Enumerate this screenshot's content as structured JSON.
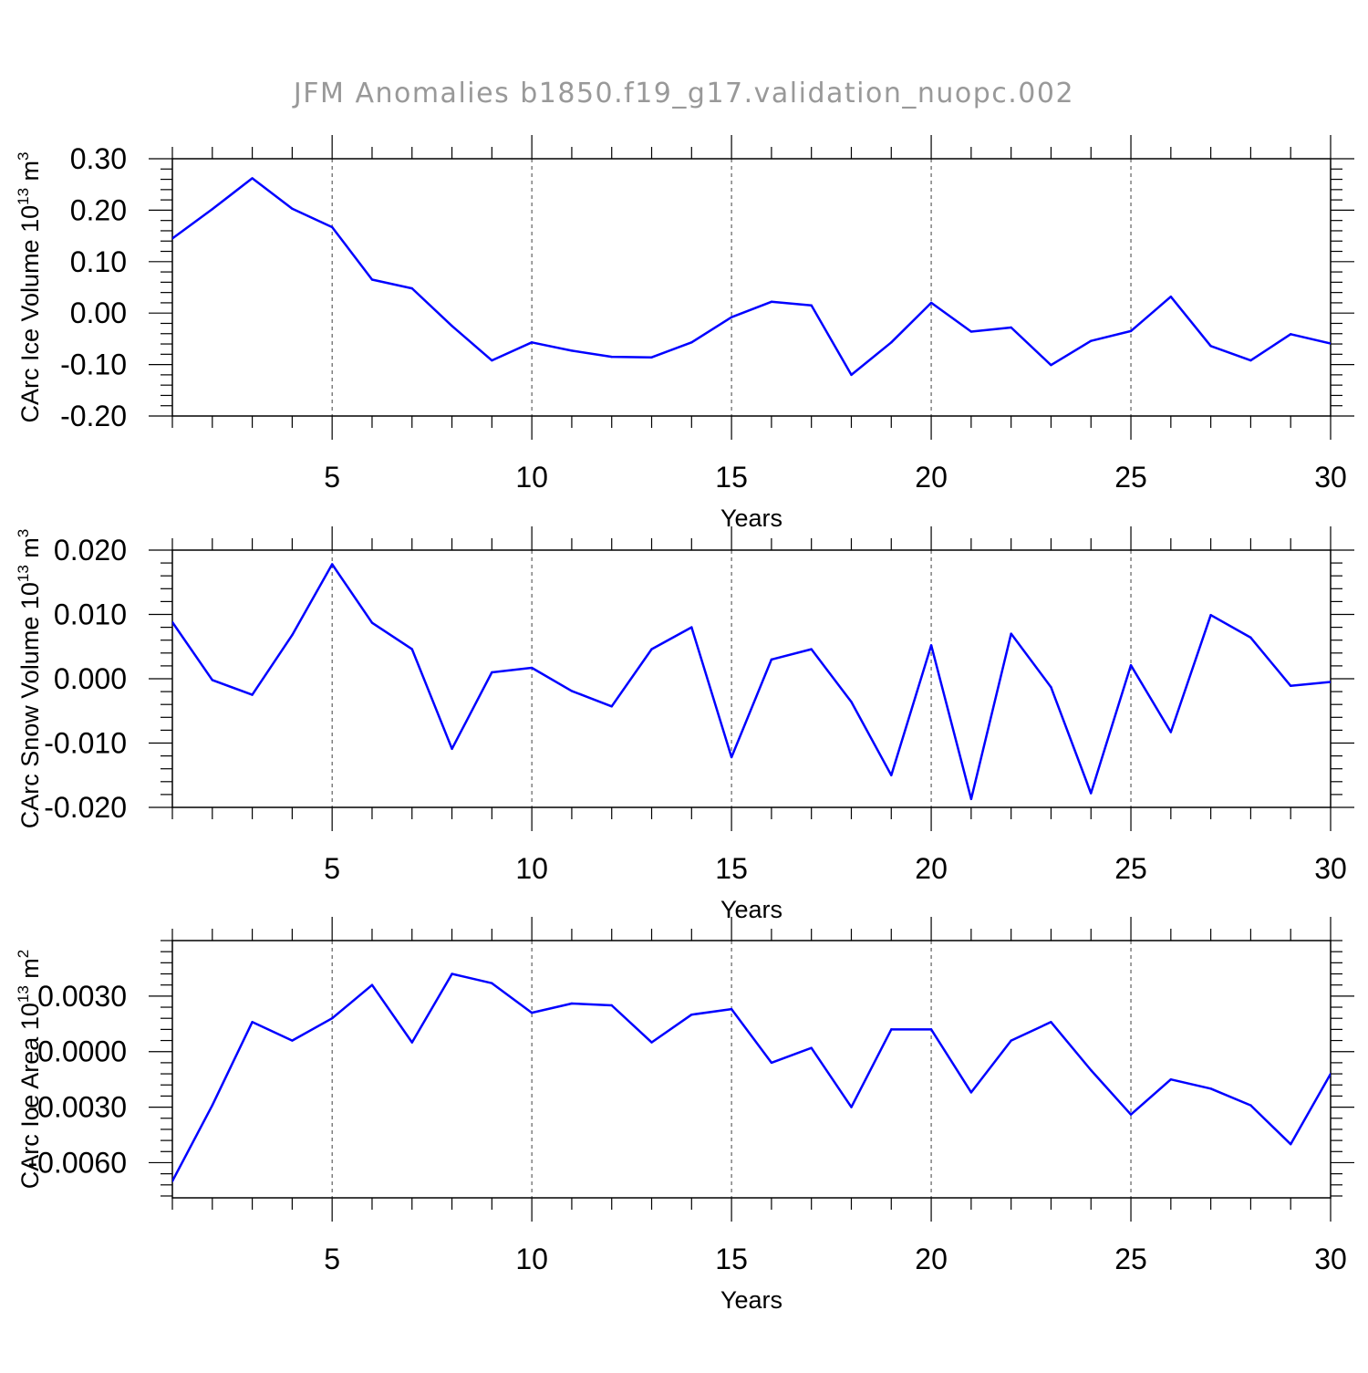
{
  "title": "JFM Anomalies b1850.f19_g17.validation_nuopc.002",
  "colors": {
    "line": "#0000ff",
    "axis": "#000000",
    "title": "#999999",
    "grid": "#000000"
  },
  "chart_data": [
    {
      "type": "line",
      "title": "",
      "xlabel": "Years",
      "ylabel_main": "CArc Ice Volume 10",
      "ylabel_sup": "13",
      "ylabel_unit": " m",
      "ylabel_unit_sup": "3",
      "xlim": [
        1,
        30
      ],
      "ylim": [
        -0.2,
        0.3
      ],
      "xticks": [
        "5",
        "10",
        "15",
        "20",
        "25",
        "30"
      ],
      "xtick_values": [
        5,
        10,
        15,
        20,
        25,
        30
      ],
      "yticks": [
        "0.30",
        "0.20",
        "0.10",
        "0.00",
        "-0.10",
        "-0.20"
      ],
      "ytick_values": [
        0.3,
        0.2,
        0.1,
        0.0,
        -0.1,
        -0.2
      ],
      "grid": "vertical dashed at major x ticks",
      "series": [
        {
          "x": [
            1,
            2,
            3,
            4,
            5,
            6,
            7,
            8,
            9,
            10,
            11,
            12,
            13,
            14,
            15,
            16,
            17,
            18,
            19,
            20,
            21,
            22,
            23,
            24,
            25,
            26,
            27,
            28,
            29,
            30
          ],
          "values": [
            0.145,
            0.202,
            0.262,
            0.203,
            0.167,
            0.065,
            0.048,
            -0.025,
            -0.092,
            -0.057,
            -0.073,
            -0.085,
            -0.086,
            -0.057,
            -0.008,
            0.022,
            0.015,
            -0.12,
            -0.057,
            0.02,
            -0.036,
            -0.028,
            -0.101,
            -0.054,
            -0.035,
            0.032,
            -0.064,
            -0.092,
            -0.041,
            -0.059
          ]
        }
      ]
    },
    {
      "type": "line",
      "title": "",
      "xlabel": "Years",
      "ylabel_main": "CArc Snow Volume 10",
      "ylabel_sup": "13",
      "ylabel_unit": " m",
      "ylabel_unit_sup": "3",
      "xlim": [
        1,
        30
      ],
      "ylim": [
        -0.02,
        0.02
      ],
      "xticks": [
        "5",
        "10",
        "15",
        "20",
        "25",
        "30"
      ],
      "xtick_values": [
        5,
        10,
        15,
        20,
        25,
        30
      ],
      "yticks": [
        "0.020",
        "0.010",
        "0.000",
        "-0.010",
        "-0.020"
      ],
      "ytick_values": [
        0.02,
        0.01,
        0.0,
        -0.01,
        -0.02
      ],
      "grid": "vertical dashed at major x ticks",
      "series": [
        {
          "x": [
            1,
            2,
            3,
            4,
            5,
            6,
            7,
            8,
            9,
            10,
            11,
            12,
            13,
            14,
            15,
            16,
            17,
            18,
            19,
            20,
            21,
            22,
            23,
            24,
            25,
            26,
            27,
            28,
            29,
            30
          ],
          "values": [
            0.0088,
            -0.0002,
            -0.0025,
            0.0068,
            0.0178,
            0.0087,
            0.0046,
            -0.0109,
            0.001,
            0.0017,
            -0.0019,
            -0.0043,
            0.0046,
            0.008,
            -0.0122,
            0.003,
            0.0046,
            -0.0036,
            -0.015,
            0.0052,
            -0.0187,
            0.007,
            -0.0013,
            -0.0178,
            0.0021,
            -0.0083,
            0.0099,
            0.0064,
            -0.0011,
            -0.0005
          ]
        }
      ]
    },
    {
      "type": "line",
      "title": "",
      "xlabel": "Years",
      "ylabel_main": "CArc Ice Area 10",
      "ylabel_sup": "13",
      "ylabel_unit": " m",
      "ylabel_unit_sup": "2",
      "xlim": [
        1,
        30
      ],
      "ylim": [
        -0.0079,
        0.006
      ],
      "xticks": [
        "5",
        "10",
        "15",
        "20",
        "25",
        "30"
      ],
      "xtick_values": [
        5,
        10,
        15,
        20,
        25,
        30
      ],
      "yticks": [
        "0.0030",
        "0.0000",
        "-0.0030",
        "-0.0060"
      ],
      "ytick_values": [
        0.003,
        0.0,
        -0.003,
        -0.006
      ],
      "grid": "vertical dashed at major x ticks",
      "series": [
        {
          "x": [
            1,
            2,
            3,
            4,
            5,
            6,
            7,
            8,
            9,
            10,
            11,
            12,
            13,
            14,
            15,
            16,
            17,
            18,
            19,
            20,
            21,
            22,
            23,
            24,
            25,
            26,
            27,
            28,
            29,
            30
          ],
          "values": [
            -0.007,
            -0.0029,
            0.0016,
            0.0006,
            0.0018,
            0.0036,
            0.0005,
            0.0042,
            0.0037,
            0.0021,
            0.0026,
            0.0025,
            0.0005,
            0.002,
            0.0023,
            -0.0006,
            0.0002,
            -0.003,
            0.0012,
            0.0012,
            -0.0022,
            0.0006,
            0.0016,
            -0.001,
            -0.0034,
            -0.0015,
            -0.002,
            -0.0029,
            -0.005,
            -0.0012
          ]
        }
      ]
    }
  ]
}
